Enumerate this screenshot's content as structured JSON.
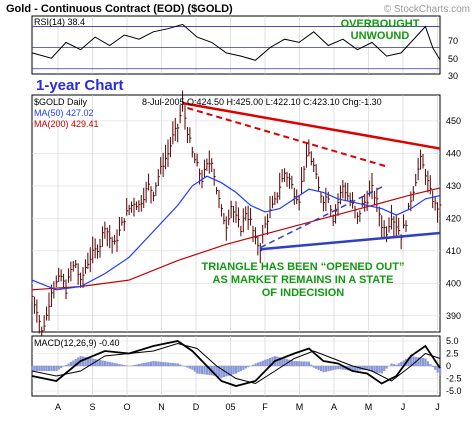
{
  "header": {
    "title": "Gold - Continuous Contract (EOD) ($GOLD)",
    "copyright": "© StockCharts.com"
  },
  "rsi": {
    "label": "RSI(14)",
    "value": "38.4",
    "ticks": [
      "70",
      "50",
      "30"
    ],
    "annotation_line1": "OVERBOUGHT",
    "annotation_line2": "UNWOUND"
  },
  "banner": "1-year Chart",
  "price": {
    "symbol_label": "$GOLD Daily",
    "ohlc": "8-Jul-2005 O:424.50 H:425.00 L:422.10 C:423.10 Chg:-1.30",
    "ma50": "MA(50) 427.02",
    "ma200": "MA(200) 429.41",
    "ticks": [
      "450",
      "440",
      "430",
      "420",
      "410",
      "400",
      "390"
    ],
    "annotation": [
      "TRIANGLE HAS BEEN “OPENED OUT”",
      "AS MARKET REMAINS IN A STATE",
      "OF INDECISION"
    ]
  },
  "macd": {
    "label": "MACD(12,26,9)",
    "value": "-0.40",
    "ticks": [
      "5.0",
      "2.5",
      "0",
      "-2.5",
      "-5.0"
    ]
  },
  "x_axis": {
    "labels": [
      "A",
      "S",
      "O",
      "N",
      "D",
      "05",
      "F",
      "M",
      "A",
      "M",
      "J",
      "J"
    ]
  },
  "colors": {
    "ma50": "#1e3cff",
    "ma200": "#c80000",
    "resistance": "#dd0000",
    "support": "#3040c0",
    "annotation": "#119911",
    "banner": "#2b2bd6",
    "bars": "#550000"
  },
  "chart_data": {
    "type": "line",
    "x_range": [
      "2004-07-12",
      "2005-07-08"
    ],
    "x_months": [
      "Aug 2004",
      "Sep 2004",
      "Oct 2004",
      "Nov 2004",
      "Dec 2004",
      "Jan 2005",
      "Feb 2005",
      "Mar 2005",
      "Apr 2005",
      "May 2005",
      "Jun 2005",
      "Jul 2005"
    ],
    "price_ylim": [
      385,
      458
    ],
    "rsi_ylim": [
      25,
      80
    ],
    "macd_ylim": [
      -6,
      6
    ],
    "price_path": [
      [
        0,
        396
      ],
      [
        2,
        392
      ],
      [
        4,
        385
      ],
      [
        6,
        390
      ],
      [
        8,
        398
      ],
      [
        10,
        400
      ],
      [
        12,
        402
      ],
      [
        14,
        398
      ],
      [
        16,
        404
      ],
      [
        18,
        406
      ],
      [
        20,
        400
      ],
      [
        22,
        405
      ],
      [
        24,
        408
      ],
      [
        26,
        410
      ],
      [
        28,
        412
      ],
      [
        30,
        418
      ],
      [
        32,
        414
      ],
      [
        34,
        412
      ],
      [
        36,
        416
      ],
      [
        38,
        420
      ],
      [
        40,
        423
      ],
      [
        42,
        425
      ],
      [
        44,
        424
      ],
      [
        46,
        427
      ],
      [
        48,
        430
      ],
      [
        50,
        428
      ],
      [
        52,
        433
      ],
      [
        54,
        437
      ],
      [
        56,
        440
      ],
      [
        58,
        445
      ],
      [
        60,
        448
      ],
      [
        62,
        455
      ],
      [
        64,
        447
      ],
      [
        66,
        440
      ],
      [
        68,
        436
      ],
      [
        70,
        432
      ],
      [
        72,
        436
      ],
      [
        74,
        438
      ],
      [
        76,
        429
      ],
      [
        78,
        422
      ],
      [
        80,
        418
      ],
      [
        82,
        424
      ],
      [
        84,
        420
      ],
      [
        86,
        417
      ],
      [
        88,
        422
      ],
      [
        90,
        419
      ],
      [
        92,
        413
      ],
      [
        94,
        411
      ],
      [
        96,
        418
      ],
      [
        98,
        422
      ],
      [
        100,
        425
      ],
      [
        102,
        430
      ],
      [
        104,
        434
      ],
      [
        106,
        432
      ],
      [
        108,
        428
      ],
      [
        110,
        426
      ],
      [
        112,
        436
      ],
      [
        114,
        440
      ],
      [
        116,
        436
      ],
      [
        118,
        429
      ],
      [
        120,
        426
      ],
      [
        122,
        427
      ],
      [
        124,
        420
      ],
      [
        126,
        425
      ],
      [
        128,
        430
      ],
      [
        130,
        427
      ],
      [
        132,
        424
      ],
      [
        134,
        420
      ],
      [
        136,
        424
      ],
      [
        138,
        426
      ],
      [
        140,
        429
      ],
      [
        142,
        425
      ],
      [
        144,
        418
      ],
      [
        146,
        416
      ],
      [
        148,
        421
      ],
      [
        150,
        418
      ],
      [
        152,
        415
      ],
      [
        154,
        419
      ],
      [
        156,
        426
      ],
      [
        158,
        432
      ],
      [
        160,
        438
      ],
      [
        162,
        434
      ],
      [
        164,
        428
      ],
      [
        166,
        424
      ],
      [
        168,
        423
      ]
    ],
    "ma50_path": [
      [
        0,
        401
      ],
      [
        10,
        398
      ],
      [
        20,
        399
      ],
      [
        30,
        403
      ],
      [
        40,
        408
      ],
      [
        50,
        416
      ],
      [
        60,
        424
      ],
      [
        66,
        430
      ],
      [
        72,
        433
      ],
      [
        78,
        431
      ],
      [
        84,
        428
      ],
      [
        90,
        424
      ],
      [
        96,
        422
      ],
      [
        102,
        423
      ],
      [
        108,
        426
      ],
      [
        114,
        429
      ],
      [
        120,
        428
      ],
      [
        126,
        426
      ],
      [
        132,
        425
      ],
      [
        138,
        424
      ],
      [
        144,
        423
      ],
      [
        150,
        421
      ],
      [
        156,
        423
      ],
      [
        162,
        426
      ],
      [
        168,
        427
      ]
    ],
    "ma200_path": [
      [
        0,
        398
      ],
      [
        20,
        399
      ],
      [
        40,
        401
      ],
      [
        60,
        407
      ],
      [
        80,
        412
      ],
      [
        100,
        416
      ],
      [
        120,
        420
      ],
      [
        140,
        424
      ],
      [
        155,
        427
      ],
      [
        168,
        429.4
      ]
    ],
    "resistance_line": [
      [
        62,
        455.5
      ],
      [
        168,
        441.5
      ]
    ],
    "support_line": [
      [
        94,
        410.5
      ],
      [
        168,
        415.5
      ]
    ],
    "dashed_top": [
      [
        64,
        454
      ],
      [
        146,
        436
      ]
    ],
    "dashed_bottom": [
      [
        94,
        411
      ],
      [
        145,
        430
      ]
    ],
    "rsi_path": [
      [
        0,
        45
      ],
      [
        8,
        40
      ],
      [
        14,
        55
      ],
      [
        20,
        48
      ],
      [
        26,
        60
      ],
      [
        32,
        52
      ],
      [
        38,
        62
      ],
      [
        44,
        58
      ],
      [
        50,
        65
      ],
      [
        56,
        68
      ],
      [
        62,
        72
      ],
      [
        68,
        60
      ],
      [
        74,
        55
      ],
      [
        80,
        45
      ],
      [
        86,
        42
      ],
      [
        92,
        38
      ],
      [
        98,
        50
      ],
      [
        104,
        58
      ],
      [
        110,
        55
      ],
      [
        116,
        65
      ],
      [
        122,
        52
      ],
      [
        128,
        58
      ],
      [
        134,
        48
      ],
      [
        140,
        55
      ],
      [
        146,
        42
      ],
      [
        152,
        45
      ],
      [
        158,
        60
      ],
      [
        162,
        70
      ],
      [
        165,
        50
      ],
      [
        168,
        38.4
      ]
    ],
    "macd_path": [
      [
        0,
        -2
      ],
      [
        10,
        -3
      ],
      [
        20,
        1
      ],
      [
        30,
        3
      ],
      [
        40,
        2.5
      ],
      [
        50,
        4
      ],
      [
        60,
        5
      ],
      [
        66,
        3
      ],
      [
        72,
        0
      ],
      [
        78,
        -3
      ],
      [
        84,
        -4
      ],
      [
        92,
        -3
      ],
      [
        100,
        1
      ],
      [
        108,
        2.5
      ],
      [
        114,
        3.5
      ],
      [
        120,
        1
      ],
      [
        126,
        0.5
      ],
      [
        132,
        -1
      ],
      [
        138,
        -1.5
      ],
      [
        144,
        -3.5
      ],
      [
        150,
        -2
      ],
      [
        156,
        2
      ],
      [
        162,
        4
      ],
      [
        168,
        -0.4
      ]
    ],
    "signal_path": [
      [
        0,
        -1
      ],
      [
        10,
        -2
      ],
      [
        20,
        -1
      ],
      [
        30,
        2
      ],
      [
        40,
        2.5
      ],
      [
        50,
        3
      ],
      [
        60,
        4.5
      ],
      [
        68,
        3.5
      ],
      [
        76,
        0
      ],
      [
        84,
        -2.5
      ],
      [
        92,
        -3.5
      ],
      [
        100,
        -1
      ],
      [
        108,
        1.5
      ],
      [
        116,
        3
      ],
      [
        124,
        1.5
      ],
      [
        132,
        0
      ],
      [
        140,
        -1
      ],
      [
        148,
        -3
      ],
      [
        156,
        0
      ],
      [
        162,
        2.5
      ],
      [
        168,
        1.5
      ]
    ]
  }
}
